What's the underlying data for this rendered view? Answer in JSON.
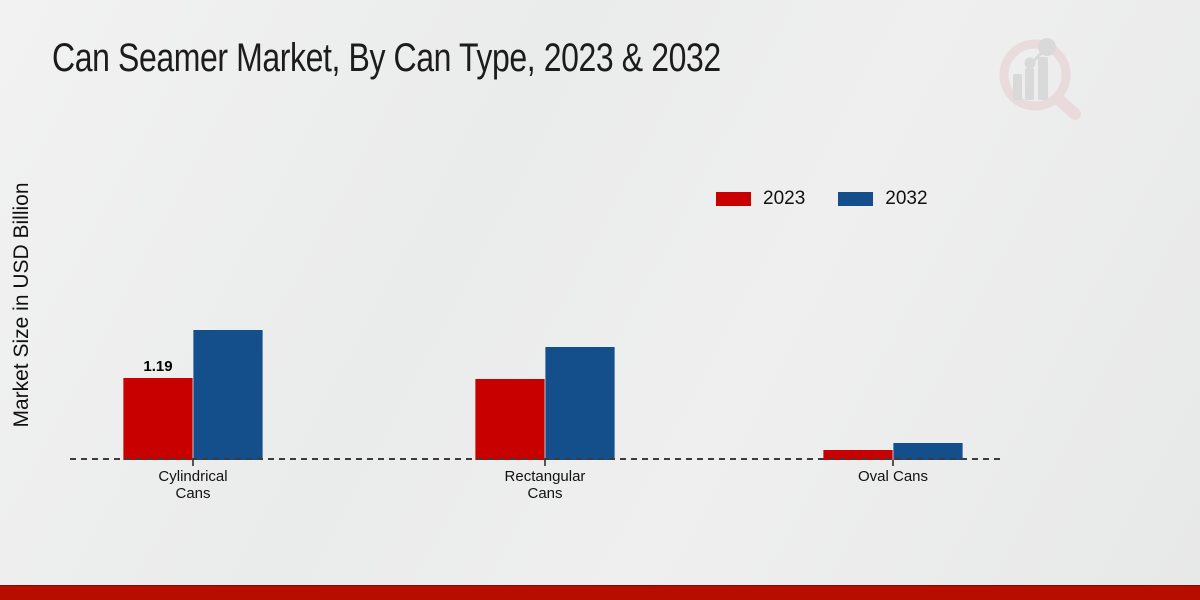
{
  "title": "Can Seamer Market, By Can Type, 2023 & 2032",
  "y_axis_label": "Market Size in USD Billion",
  "legend": {
    "items": [
      {
        "label": "2023",
        "color": "#c80100"
      },
      {
        "label": "2032",
        "color": "#144f8b"
      }
    ],
    "position": "top-right"
  },
  "watermark_icon": "magnifier-bar-chart-logo",
  "colors": {
    "series_2023": "#c80100",
    "series_2032": "#144f8b",
    "background": "#ebecec",
    "footer_stripe": "#b60d00",
    "baseline": "#3c3c3c",
    "text": "#1c1c1c"
  },
  "chart_data": {
    "type": "bar",
    "title": "Can Seamer Market, By Can Type, 2023 & 2032",
    "xlabel": "",
    "ylabel": "Market Size in USD Billion",
    "categories": [
      "Cylindrical Cans",
      "Rectangular Cans",
      "Oval Cans"
    ],
    "category_lines": [
      [
        "Cylindrical",
        "Cans"
      ],
      [
        "Rectangular",
        "Cans"
      ],
      [
        "Oval Cans"
      ]
    ],
    "series": [
      {
        "name": "2023",
        "color": "#c80100",
        "values": [
          1.19,
          1.18,
          0.15
        ],
        "labels": [
          "1.19",
          "",
          ""
        ]
      },
      {
        "name": "2032",
        "color": "#144f8b",
        "values": [
          1.89,
          1.64,
          0.25
        ],
        "labels": [
          "",
          "",
          ""
        ]
      }
    ],
    "ylim": [
      0,
      2.5
    ],
    "grid": false,
    "axis_ticks_visible": false,
    "legend_position": "top-right",
    "baseline_style": "dashed",
    "visible_data_labels": [
      "1.19"
    ]
  }
}
